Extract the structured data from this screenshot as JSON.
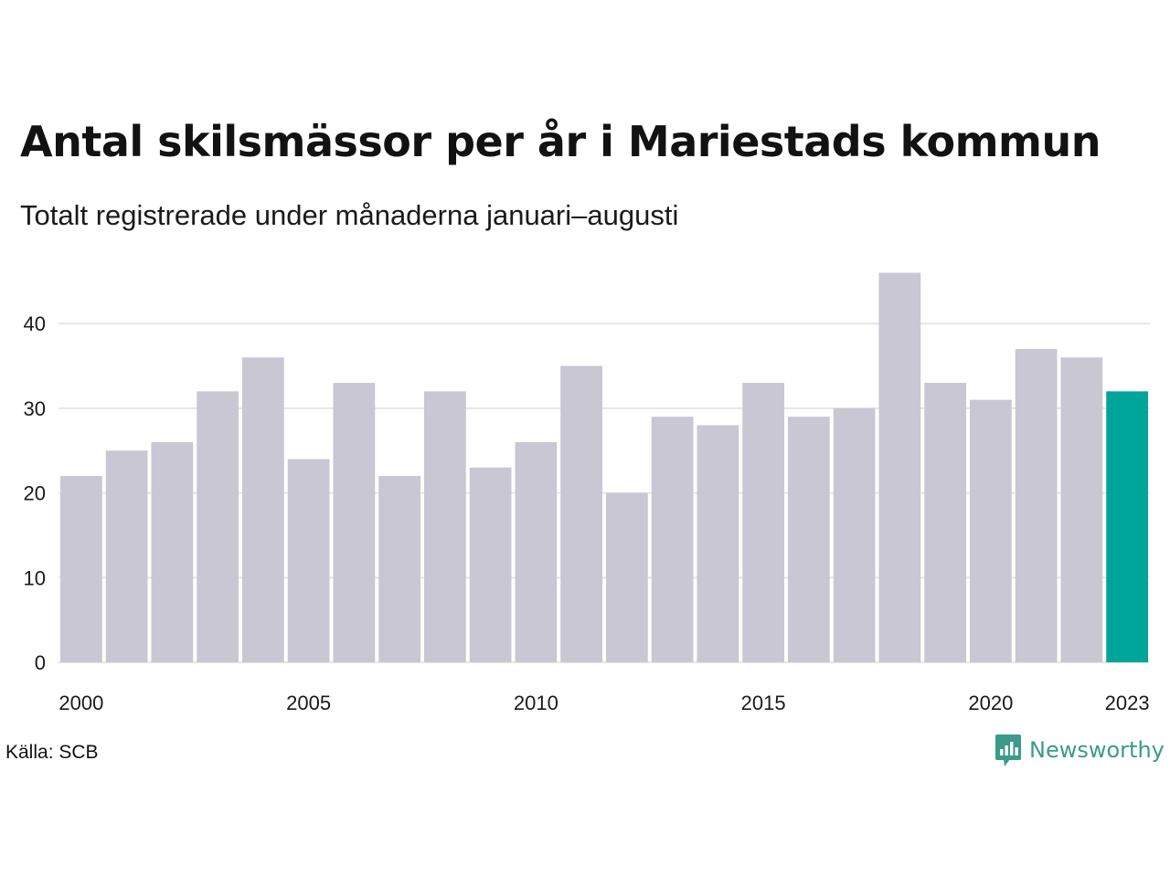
{
  "title": "Antal skilsmässor per år i Mariestads kommun",
  "subtitle": "Totalt registrerade under månaderna januari–augusti",
  "source": "Källa: SCB",
  "brand": {
    "name": "Newsworthy",
    "logo_icon": "chart-speech-bubble-icon"
  },
  "colors": {
    "bar": "#c8c7d3",
    "highlight": "#00a59a",
    "grid": "#e6e6e6",
    "brand": "#3c9a8a"
  },
  "chart_data": {
    "type": "bar",
    "categories": [
      "2000",
      "2001",
      "2002",
      "2003",
      "2004",
      "2005",
      "2006",
      "2007",
      "2008",
      "2009",
      "2010",
      "2011",
      "2012",
      "2013",
      "2014",
      "2015",
      "2016",
      "2017",
      "2018",
      "2019",
      "2020",
      "2021",
      "2022",
      "2023"
    ],
    "values": [
      22,
      25,
      26,
      32,
      36,
      24,
      33,
      22,
      32,
      23,
      26,
      35,
      20,
      29,
      28,
      33,
      29,
      30,
      46,
      33,
      31,
      37,
      36,
      32
    ],
    "highlight_category": "2023",
    "x_tick_labels": [
      "2000",
      "2005",
      "2010",
      "2015",
      "2020",
      "2023"
    ],
    "y_ticks": [
      0,
      10,
      20,
      30,
      40
    ],
    "ylim": [
      0,
      46
    ],
    "grid": true,
    "legend": false
  }
}
